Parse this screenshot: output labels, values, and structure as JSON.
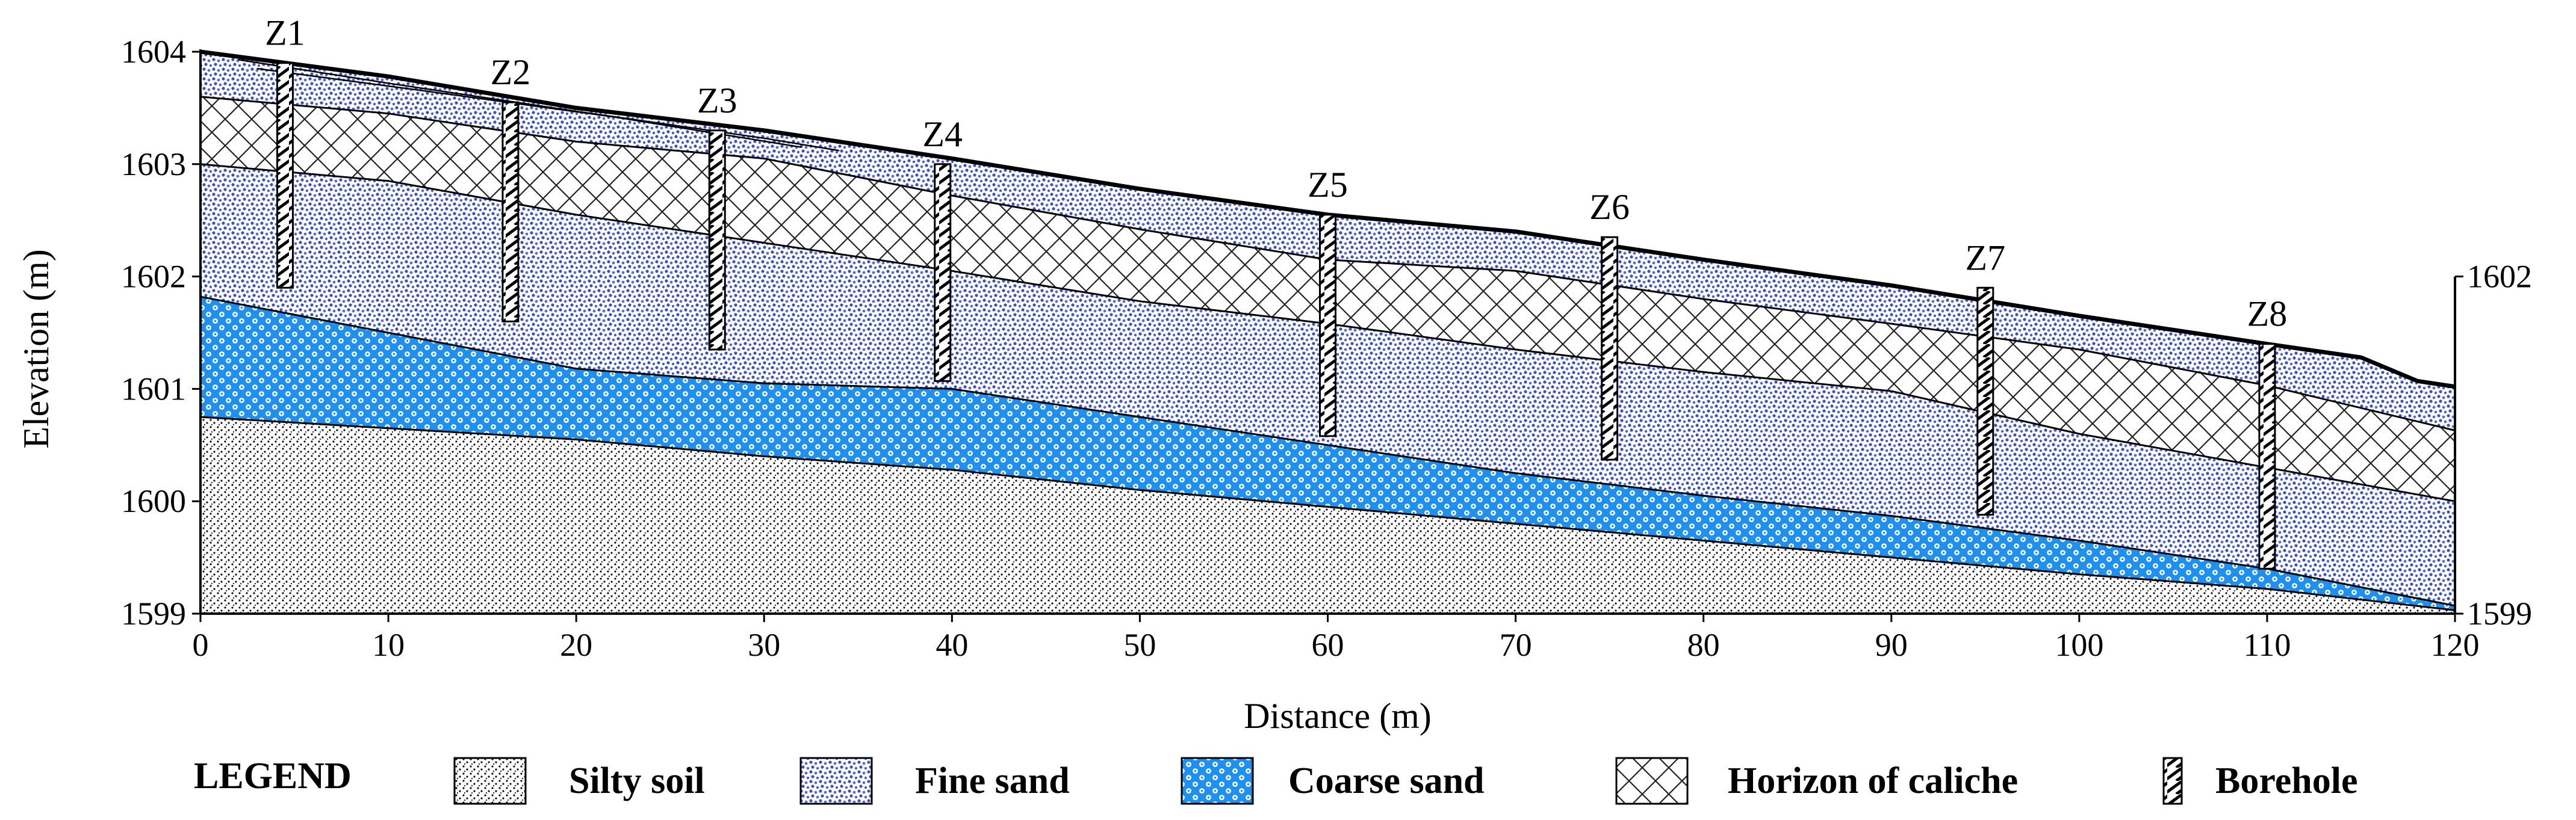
{
  "chart_data": {
    "type": "geological-cross-section",
    "xlabel": "Distance (m)",
    "ylabel": "Elevation (m)",
    "xlim": [
      0,
      120
    ],
    "ylim": [
      1599,
      1604
    ],
    "x_ticks": [
      0,
      10,
      20,
      30,
      40,
      50,
      60,
      70,
      80,
      90,
      100,
      110,
      120
    ],
    "y_ticks": [
      1599,
      1600,
      1601,
      1602,
      1603,
      1604
    ],
    "right_axis_labels": [
      {
        "elevation": 1602,
        "label": "1602"
      },
      {
        "elevation": 1599,
        "label": "1599"
      }
    ],
    "boundaries": {
      "ground_surface": [
        [
          0,
          1604.0
        ],
        [
          10,
          1603.78
        ],
        [
          20,
          1603.5
        ],
        [
          30,
          1603.3
        ],
        [
          40,
          1603.05
        ],
        [
          50,
          1602.78
        ],
        [
          60,
          1602.55
        ],
        [
          70,
          1602.4
        ],
        [
          80,
          1602.15
        ],
        [
          90,
          1601.92
        ],
        [
          100,
          1601.65
        ],
        [
          110,
          1601.4
        ],
        [
          115,
          1601.28
        ],
        [
          118,
          1601.07
        ],
        [
          120,
          1601.02
        ]
      ],
      "caliche_top": [
        [
          0,
          1603.6
        ],
        [
          10,
          1603.45
        ],
        [
          20,
          1603.2
        ],
        [
          30,
          1603.05
        ],
        [
          40,
          1602.72
        ],
        [
          50,
          1602.42
        ],
        [
          60,
          1602.15
        ],
        [
          70,
          1602.05
        ],
        [
          80,
          1601.8
        ],
        [
          90,
          1601.58
        ],
        [
          100,
          1601.35
        ],
        [
          110,
          1601.03
        ],
        [
          120,
          1600.63
        ]
      ],
      "caliche_base": [
        [
          0,
          1603.0
        ],
        [
          10,
          1602.85
        ],
        [
          20,
          1602.55
        ],
        [
          30,
          1602.3
        ],
        [
          40,
          1602.05
        ],
        [
          50,
          1601.78
        ],
        [
          60,
          1601.58
        ],
        [
          70,
          1601.35
        ],
        [
          80,
          1601.15
        ],
        [
          90,
          1600.98
        ],
        [
          100,
          1600.6
        ],
        [
          110,
          1600.3
        ],
        [
          120,
          1600.0
        ]
      ],
      "fine_sand_base": [
        [
          0,
          1601.82
        ],
        [
          10,
          1601.5
        ],
        [
          20,
          1601.18
        ],
        [
          30,
          1601.05
        ],
        [
          40,
          1601.0
        ],
        [
          50,
          1600.75
        ],
        [
          60,
          1600.5
        ],
        [
          70,
          1600.25
        ],
        [
          80,
          1600.05
        ],
        [
          90,
          1599.87
        ],
        [
          100,
          1599.65
        ],
        [
          110,
          1599.4
        ],
        [
          120,
          1599.07
        ]
      ],
      "coarse_sand_base": [
        [
          0,
          1600.75
        ],
        [
          10,
          1600.65
        ],
        [
          20,
          1600.55
        ],
        [
          30,
          1600.4
        ],
        [
          40,
          1600.28
        ],
        [
          50,
          1600.1
        ],
        [
          60,
          1599.95
        ],
        [
          70,
          1599.8
        ],
        [
          80,
          1599.65
        ],
        [
          90,
          1599.5
        ],
        [
          100,
          1599.35
        ],
        [
          110,
          1599.22
        ],
        [
          120,
          1599.03
        ]
      ]
    },
    "near_surface_lenses": [
      {
        "bottom": [
          [
            2,
            1603.93
          ],
          [
            10,
            1603.72
          ],
          [
            20,
            1603.47
          ],
          [
            30,
            1603.23
          ],
          [
            34,
            1603.12
          ]
        ]
      },
      {
        "bottom": [
          [
            3,
            1603.85
          ],
          [
            12,
            1603.65
          ],
          [
            22,
            1603.42
          ],
          [
            32,
            1603.15
          ]
        ]
      }
    ],
    "layers": [
      {
        "name": "Silty soil",
        "pattern": "silty",
        "top": "coarse_sand_base",
        "bottom": "axis"
      },
      {
        "name": "Coarse sand",
        "pattern": "coarse",
        "top": "fine_sand_base",
        "bottom": "coarse_sand_base"
      },
      {
        "name": "Fine sand",
        "pattern": "fine",
        "top": "caliche_base",
        "bottom": "fine_sand_base"
      },
      {
        "name": "Horizon of caliche",
        "pattern": "caliche",
        "top": "caliche_top",
        "bottom": "caliche_base"
      },
      {
        "name": "Fine sand",
        "pattern": "fine",
        "top": "ground_surface",
        "bottom": "caliche_top"
      }
    ],
    "boreholes": [
      {
        "name": "Z1",
        "x": 4.5,
        "top": 1603.9,
        "bottom": 1601.9
      },
      {
        "name": "Z2",
        "x": 16.5,
        "top": 1603.55,
        "bottom": 1601.6
      },
      {
        "name": "Z3",
        "x": 27.5,
        "top": 1603.3,
        "bottom": 1601.35
      },
      {
        "name": "Z4",
        "x": 39.5,
        "top": 1603.0,
        "bottom": 1601.07
      },
      {
        "name": "Z5",
        "x": 60.0,
        "top": 1602.55,
        "bottom": 1600.58
      },
      {
        "name": "Z6",
        "x": 75.0,
        "top": 1602.35,
        "bottom": 1600.37
      },
      {
        "name": "Z7",
        "x": 95.0,
        "top": 1601.9,
        "bottom": 1599.88
      },
      {
        "name": "Z8",
        "x": 110.0,
        "top": 1601.4,
        "bottom": 1599.4
      }
    ]
  },
  "legend": {
    "title": "LEGEND",
    "items": [
      {
        "label": "Silty soil",
        "pattern": "silty"
      },
      {
        "label": "Fine sand",
        "pattern": "fine"
      },
      {
        "label": "Coarse sand",
        "pattern": "coarse"
      },
      {
        "label": "Horizon of caliche",
        "pattern": "caliche"
      },
      {
        "label": "Borehole",
        "pattern": "borehole"
      }
    ]
  },
  "colors": {
    "fine_sand_dots": "#3d4fc4",
    "coarse_sand_fill": "#1f8ff0",
    "outline": "#000000",
    "background": "#ffffff"
  }
}
